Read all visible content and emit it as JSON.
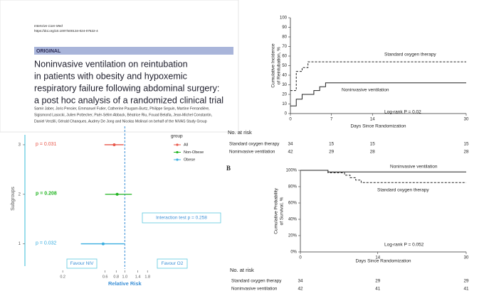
{
  "article": {
    "journal": "Intensive Care Med",
    "doi": "https://doi.org/10.1007/s00134-024-07522-4",
    "section": "ORIGINAL",
    "title_lines": [
      "Noninvasive ventilation on reintubation",
      "in patients with obesity and hypoxemic",
      "respiratory failure following abdominal surgery:",
      "a post hoc analysis of a randomized clinical trial"
    ],
    "author_lines": [
      "Samir Jaber, Joris Pensier, Emmanuel Futier, Catherine Paugam-Burtz, Philippe Seguin, Martine Ferrandière,",
      "Sigismond Lasocki, Julien Pottecher, Paër-Sélim Abback, Béatrice Riu, Fouad Belafia, Jean-Michel Constantin,",
      "Daniel Verzilli, Gérald Chanques, Audrey De Jong and Nicolas Molinari on behalf of the NIVAS Study Group"
    ]
  },
  "panel_label": "B",
  "chart_data": [
    {
      "type": "forest",
      "xlabel": "Relative Risk",
      "ylabel": "Subgroups",
      "xlog": true,
      "xlim": [
        0.075,
        12
      ],
      "xticks": [
        0.2,
        0.6,
        0.8,
        {
          "value": 1,
          "label": "1.0"
        },
        1.4,
        1.8
      ],
      "ylim": [
        0.55,
        3.2
      ],
      "yticks": [
        1,
        2,
        3
      ],
      "reference_line": 1,
      "legend_title": "group",
      "series": [
        {
          "name": "All",
          "color": "#e8574a",
          "y": 3,
          "value": 0.76,
          "lower": 0.59,
          "upper": 0.97,
          "p_label": "p = 0.031"
        },
        {
          "name": "Non-Obese",
          "color": "#22b522",
          "y": 2,
          "value": 0.82,
          "lower": 0.6,
          "upper": 1.2,
          "p_label": "p = 0.208"
        },
        {
          "name": "Obese",
          "color": "#3aaee0",
          "y": 1,
          "value": 0.57,
          "lower": 0.32,
          "upper": 0.99,
          "p_label": "p = 0.032"
        }
      ],
      "interaction_label": "Interaction test p = 0.258",
      "favour_labels": [
        "Favour NIV",
        "Favour O2"
      ]
    },
    {
      "type": "step",
      "ylabel": [
        "Cumulative Incidence",
        "of Reintubation, %"
      ],
      "xlabel": "Days Since Randomization",
      "xlim": [
        0,
        30
      ],
      "xticks": [
        0,
        7,
        14,
        30
      ],
      "ylim": [
        0,
        100
      ],
      "yticks": [
        0,
        10,
        20,
        30,
        40,
        50,
        60,
        70,
        80,
        90,
        100
      ],
      "annotation": "Log-rank P = 0.02",
      "series": [
        {
          "name": "Standard oxygen therapy",
          "color": "#222222",
          "dashed": true,
          "x": [
            0,
            1,
            2,
            3,
            30
          ],
          "values": [
            24,
            44,
            48,
            54,
            54
          ]
        },
        {
          "name": "Noninvasive ventilation",
          "color": "#222222",
          "dashed": false,
          "x": [
            0,
            1,
            2,
            4,
            5,
            6,
            30
          ],
          "values": [
            8,
            15,
            20,
            24,
            28,
            32,
            32
          ]
        }
      ],
      "risk_table": {
        "title": "No. at risk",
        "rows": [
          {
            "name": "Standard oxygen therapy",
            "values": [
              34,
              15,
              15,
              15
            ]
          },
          {
            "name": "Noninvasive ventilation",
            "values": [
              42,
              29,
              28,
              28
            ]
          }
        ]
      }
    },
    {
      "type": "step",
      "ylabel": [
        "Cumulative Probability",
        "of Survival, %"
      ],
      "xlabel": "Days Since Randomization",
      "xlim": [
        0,
        30
      ],
      "xticks": [
        0,
        14,
        30
      ],
      "ylim": [
        0,
        100
      ],
      "yticks": [
        {
          "value": 0,
          "label": "0%"
        },
        {
          "value": 20,
          "label": "20%"
        },
        {
          "value": 40,
          "label": "40%"
        },
        {
          "value": 60,
          "label": "60%"
        },
        {
          "value": 80,
          "label": "80%"
        },
        {
          "value": 100,
          "label": "100%"
        }
      ],
      "annotation": "Log-rank P = 0.052",
      "series": [
        {
          "name": "Noninvasive ventilation",
          "color": "#222222",
          "dashed": false,
          "x": [
            0,
            5,
            30
          ],
          "values": [
            100,
            98,
            98
          ]
        },
        {
          "name": "Standard oxygen therapy",
          "color": "#222222",
          "dashed": true,
          "x": [
            0,
            5,
            8,
            9,
            10,
            11,
            30
          ],
          "values": [
            100,
            97,
            94,
            91,
            88,
            85,
            85
          ]
        }
      ],
      "risk_table": {
        "title": "No. at risk",
        "rows": [
          {
            "name": "Standard oxygen therapy",
            "values": [
              34,
              29,
              29
            ]
          },
          {
            "name": "Noninvasive ventilation",
            "values": [
              42,
              41,
              41
            ]
          }
        ]
      }
    }
  ]
}
